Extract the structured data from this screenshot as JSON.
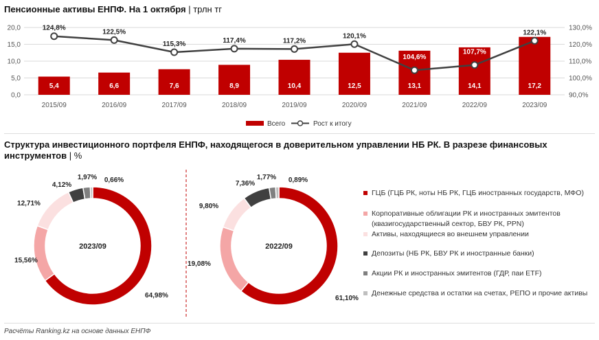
{
  "title1": {
    "bold": "Пенсионные активы ЕНПФ. На 1 октября",
    "unit": " | трлн тг"
  },
  "title2": {
    "bold": "Структура инвестиционного портфеля ЕНПФ, находящегося в доверительном управлении НБ РК. В разрезе финансовых инструментов",
    "unit": " | %"
  },
  "footer": "Расчёты Ranking.kz на основе данных ЕНПФ",
  "colors": {
    "bar": "#c00000",
    "line": "#404040",
    "grid": "#d9d9d9",
    "pie": [
      "#c00000",
      "#f4a6a6",
      "#fbe0e0",
      "#404040",
      "#808080",
      "#bfbfbf"
    ]
  },
  "chart_data": [
    {
      "type": "bar",
      "categories": [
        "2015/09",
        "2016/09",
        "2017/09",
        "2018/09",
        "2019/09",
        "2020/09",
        "2021/09",
        "2022/09",
        "2023/09"
      ],
      "series": [
        {
          "name": "Всего",
          "type": "bar",
          "axis": "left",
          "values": [
            5.4,
            6.6,
            7.6,
            8.9,
            10.4,
            12.5,
            13.1,
            14.1,
            17.2
          ],
          "labels": [
            "5,4",
            "6,6",
            "7,6",
            "8,9",
            "10,4",
            "12,5",
            "13,1",
            "14,1",
            "17,2"
          ]
        },
        {
          "name": "Рост к итогу",
          "type": "line",
          "axis": "right",
          "values": [
            124.8,
            122.5,
            115.3,
            117.4,
            117.2,
            120.1,
            104.6,
            107.7,
            122.1
          ],
          "labels": [
            "124,8%",
            "122,5%",
            "115,3%",
            "117,4%",
            "117,2%",
            "120,1%",
            "104,6%",
            "107,7%",
            "122,1%"
          ]
        }
      ],
      "ylim": [
        0,
        20
      ],
      "yticks": [
        "0,0",
        "5,0",
        "10,0",
        "15,0",
        "20,0"
      ],
      "y2lim": [
        90,
        130
      ],
      "y2ticks": [
        "90,0%",
        "100,0%",
        "110,0%",
        "120,0%",
        "130,0%"
      ],
      "grid": true,
      "legend": "bottom"
    },
    {
      "type": "pie",
      "center_label": "2023/09",
      "values": [
        64.98,
        15.56,
        12.71,
        4.12,
        1.97,
        0.66
      ],
      "labels": [
        "64,98%",
        "15,56%",
        "12,71%",
        "4,12%",
        "1,97%",
        "0,66%"
      ]
    },
    {
      "type": "pie",
      "center_label": "2022/09",
      "values": [
        61.1,
        19.08,
        9.8,
        7.36,
        1.77,
        0.89
      ],
      "labels": [
        "61,10%",
        "19,08%",
        "9,80%",
        "7,36%",
        "1,77%",
        "0,89%"
      ]
    }
  ],
  "pie_legend": [
    [
      "ГЦБ (ГЦБ РК, ноты НБ РК, ГЦБ иностранных государств, МФО)"
    ],
    [
      "Корпоративные облигации РК и иностранных эмитентов",
      "(квазигосударственный сектор, БВУ РК, PPN)"
    ],
    [
      "Активы, находящиеся во внешнем управлении"
    ],
    [
      "Депозиты (НБ РК, БВУ РК и иностранные банки)"
    ],
    [
      "Акции РК и иностранных эмитентов (ГДР, паи ETF)"
    ],
    [
      "Денежные средства и остатки на счетах, РЕПО и прочие активы"
    ]
  ]
}
